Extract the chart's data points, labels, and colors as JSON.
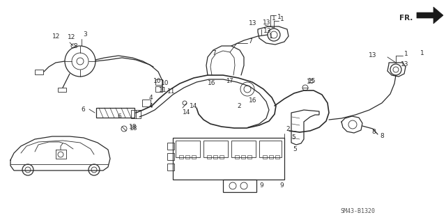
{
  "bg_color": "#ffffff",
  "line_color": "#2a2a2a",
  "watermark": "SM43-B1320",
  "figsize": [
    6.4,
    3.19
  ],
  "dpi": 100,
  "labels": [
    [
      390,
      22,
      "1"
    ],
    [
      386,
      48,
      "1"
    ],
    [
      340,
      148,
      "2"
    ],
    [
      105,
      62,
      "3"
    ],
    [
      214,
      148,
      "4"
    ],
    [
      418,
      193,
      "5"
    ],
    [
      168,
      163,
      "6"
    ],
    [
      304,
      72,
      "7"
    ],
    [
      533,
      185,
      "8"
    ],
    [
      401,
      262,
      "9"
    ],
    [
      231,
      115,
      "10"
    ],
    [
      240,
      127,
      "11"
    ],
    [
      75,
      48,
      "12"
    ],
    [
      377,
      28,
      "13"
    ],
    [
      575,
      88,
      "13"
    ],
    [
      272,
      148,
      "14"
    ],
    [
      442,
      112,
      "15"
    ],
    [
      298,
      115,
      "16"
    ],
    [
      186,
      180,
      "18"
    ],
    [
      603,
      72,
      "1"
    ]
  ]
}
